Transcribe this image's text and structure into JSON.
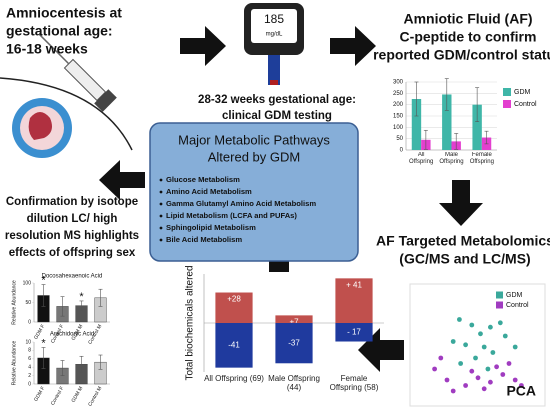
{
  "amniocentesis": {
    "lines": [
      "Amniocentesis at",
      "gestational age:",
      "16-18 weeks"
    ]
  },
  "meter": {
    "reading": 185,
    "unit": "mg/dL"
  },
  "testing": {
    "lines": [
      "28-32 weeks gestational age:",
      "clinical GDM testing"
    ]
  },
  "af": {
    "lines": [
      "Amniotic Fluid (AF)",
      "C-peptide to confirm",
      "reported GDM/control status"
    ]
  },
  "pathways": {
    "title_lines": [
      "Major Metabolic Pathways",
      "Altered by GDM"
    ],
    "items": [
      "Glucose Metabolism",
      "Amino Acid Metabolism",
      "Gamma Glutamyl Amino Acid Metabolism",
      "Lipid Metabolism (LCFA and PUFAs)",
      "Sphingolipid Metabolism",
      "Bile Acid Metabolism"
    ]
  },
  "confirmation": {
    "lines": [
      "Confirmation by isotope",
      "dilution LC/ high",
      "resolution MS highlights",
      "effects of offspring sex"
    ]
  },
  "metabolomics": {
    "lines": [
      "AF Targeted Metabolomics",
      "(GC/MS and LC/MS)"
    ]
  },
  "chart_data": [
    {
      "type": "bar",
      "categories": [
        "All Offspring",
        "Male Offspring",
        "Female Offspring"
      ],
      "series": [
        {
          "name": "GDM",
          "color": "#3fb6a8",
          "values": [
            225,
            245,
            200
          ],
          "errors": [
            75,
            70,
            75
          ]
        },
        {
          "name": "Control",
          "color": "#e33fcf",
          "values": [
            45,
            38,
            55
          ],
          "errors": [
            42,
            35,
            28
          ]
        }
      ],
      "ylim": [
        0,
        300
      ],
      "yticks": [
        0,
        50,
        100,
        150,
        200,
        250,
        300
      ],
      "grid": true,
      "legend": "right"
    },
    {
      "type": "bar",
      "ylabel": "Total biochemicals altered",
      "categories": [
        "All Offspring (69)",
        "Male Offspring (44)",
        "Female Offspring (58)"
      ],
      "series": [
        {
          "color": "#c0504d",
          "values": [
            28,
            7,
            41
          ],
          "value_labels": [
            "+28",
            "+7",
            "+ 41"
          ]
        },
        {
          "color": "#1f3a9e",
          "values": [
            -41,
            -37,
            -17
          ],
          "value_labels": [
            "-41",
            "-37",
            "- 17"
          ]
        }
      ],
      "ylim": [
        -45,
        45
      ]
    },
    {
      "type": "bar",
      "title": "Docosahexaenoic Acid",
      "ylabel": "Relative Abundance",
      "categories": [
        "GDM F",
        "Control F",
        "GDM M",
        "Control M"
      ],
      "colors": [
        "#111111",
        "#777777",
        "#555555",
        "#cccccc"
      ],
      "values": [
        68,
        40,
        42,
        62
      ],
      "errors": [
        28,
        25,
        12,
        22
      ],
      "ylim": [
        0,
        100
      ],
      "yticks": [
        0,
        50,
        100
      ],
      "annotations": [
        {
          "text": "*",
          "category": "GDM F"
        },
        {
          "text": "*",
          "category": "GDM M"
        }
      ]
    },
    {
      "type": "bar",
      "title": "Arachidonic Acid",
      "ylabel": "Relative Abundance",
      "categories": [
        "GDM F",
        "Control F",
        "GDM M",
        "Control M"
      ],
      "colors": [
        "#111111",
        "#777777",
        "#555555",
        "#cccccc"
      ],
      "values": [
        6.2,
        3.8,
        4.7,
        5.2
      ],
      "errors": [
        2.5,
        1.8,
        1.9,
        1.7
      ],
      "ylim": [
        0,
        10
      ],
      "yticks": [
        0,
        2,
        4,
        6,
        8,
        10
      ],
      "annotations": [
        {
          "text": "*",
          "category": "GDM F"
        }
      ]
    },
    {
      "type": "scatter",
      "label": "PCA",
      "legend": "upper right",
      "xlim": [
        0,
        1
      ],
      "ylim": [
        0,
        1
      ],
      "series": [
        {
          "name": "GDM",
          "color": "#3aa89b",
          "x": [
            0.35,
            0.45,
            0.52,
            0.6,
            0.68,
            0.3,
            0.4,
            0.55,
            0.62,
            0.72,
            0.48,
            0.36,
            0.58,
            0.8
          ],
          "y": [
            0.75,
            0.7,
            0.62,
            0.68,
            0.72,
            0.55,
            0.52,
            0.5,
            0.45,
            0.6,
            0.4,
            0.35,
            0.3,
            0.5
          ]
        },
        {
          "name": "Control",
          "color": "#a03cc0",
          "x": [
            0.15,
            0.25,
            0.4,
            0.5,
            0.6,
            0.7,
            0.8,
            0.3,
            0.45,
            0.55,
            0.75,
            0.2,
            0.65,
            0.85
          ],
          "y": [
            0.3,
            0.2,
            0.15,
            0.22,
            0.18,
            0.25,
            0.2,
            0.1,
            0.28,
            0.12,
            0.35,
            0.4,
            0.32,
            0.15
          ]
        }
      ]
    }
  ]
}
